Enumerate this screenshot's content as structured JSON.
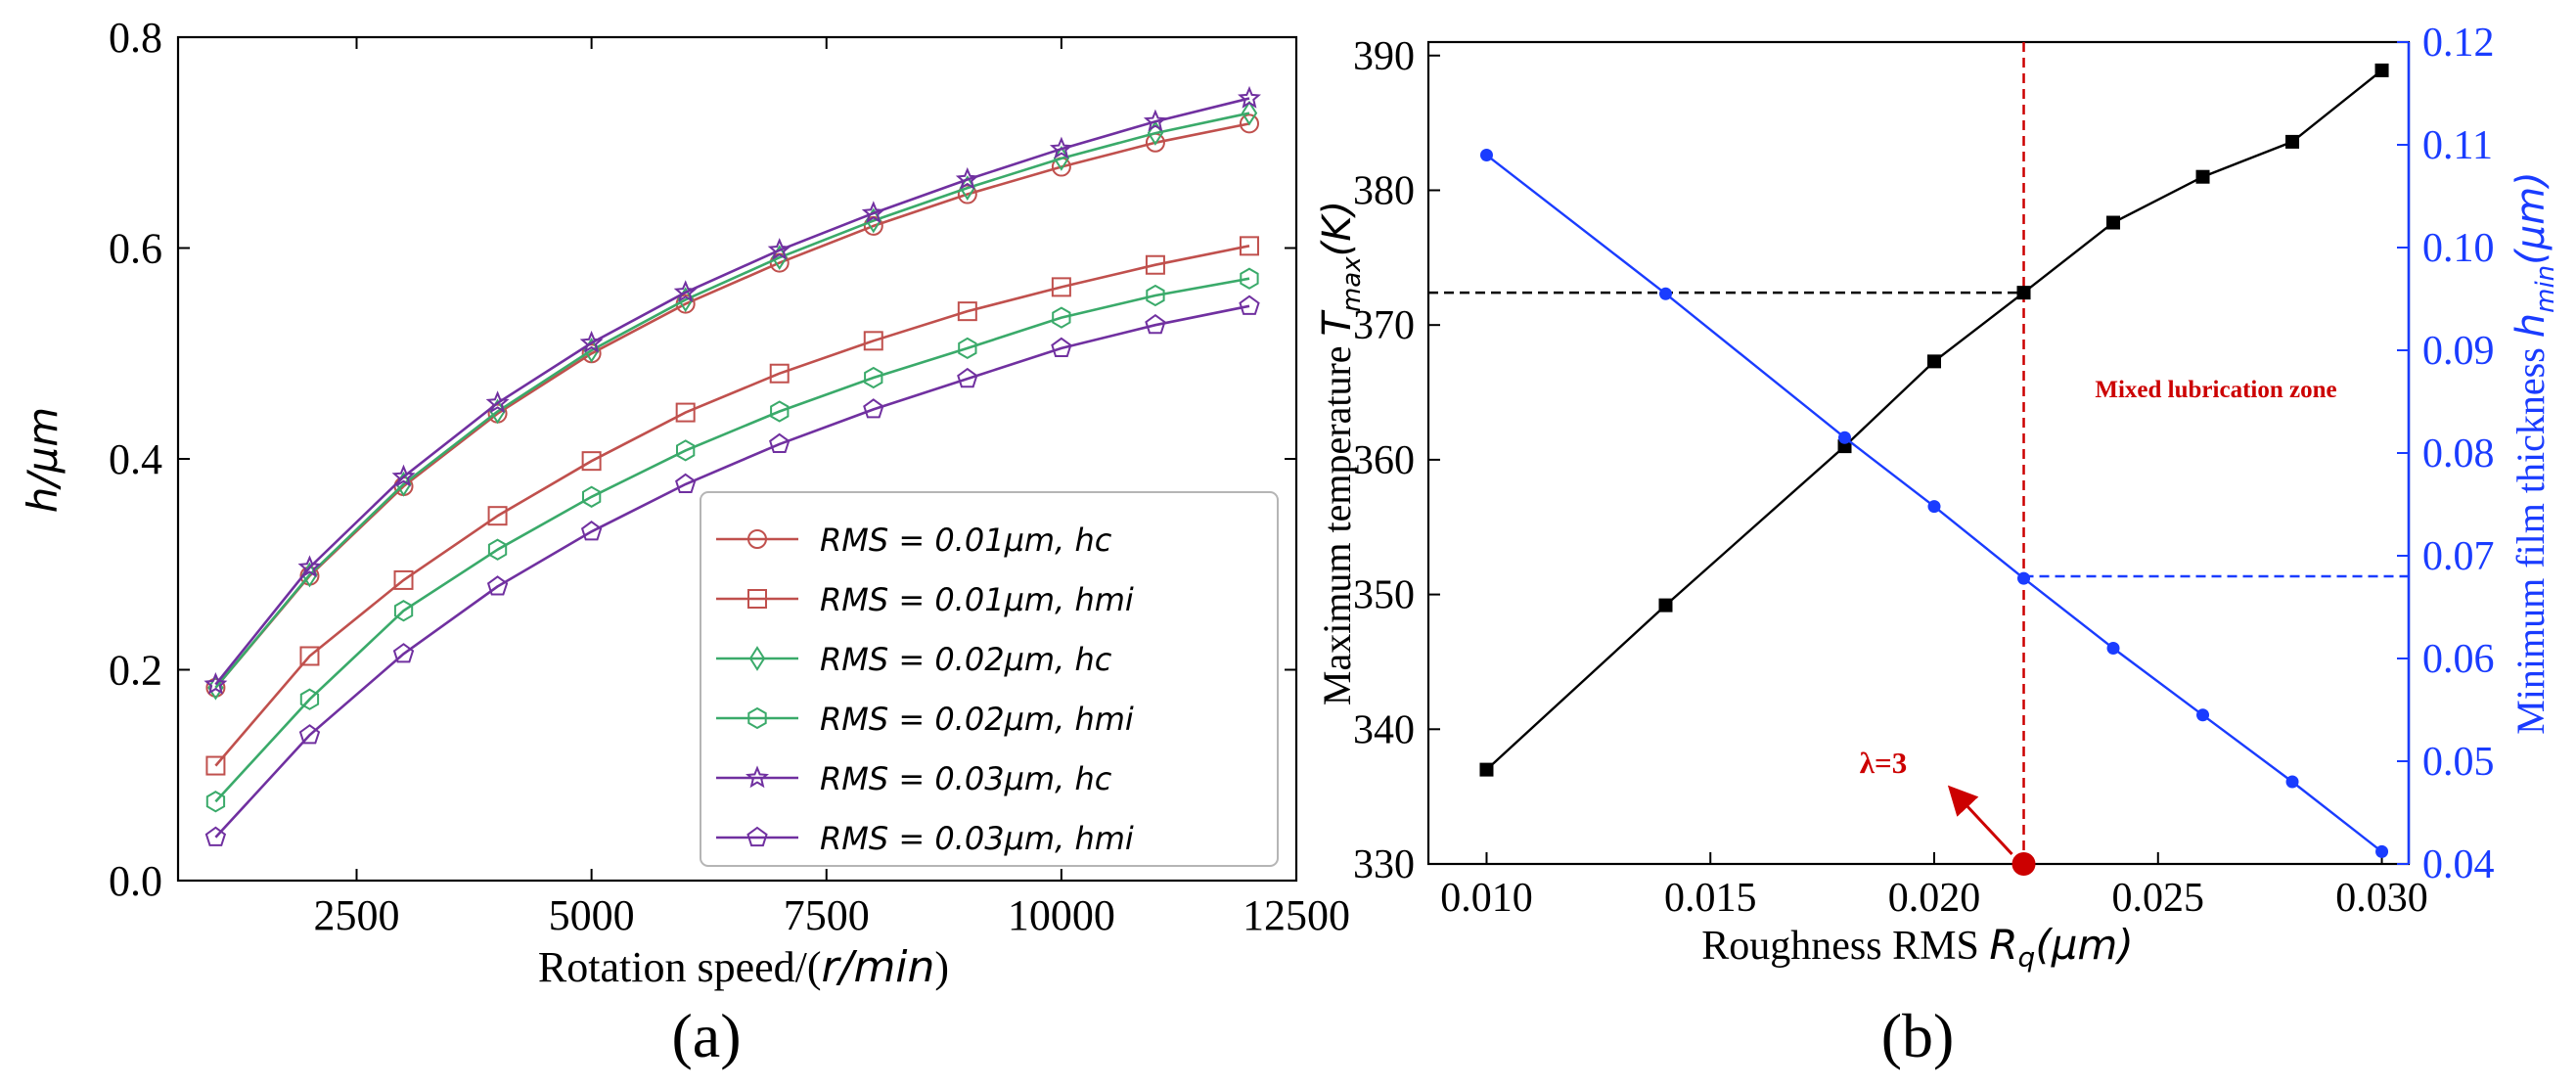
{
  "chart_data": [
    {
      "panel": "a",
      "type": "line",
      "caption": "(a)",
      "xlabel_prefix": "Rotation speed/(",
      "xlabel_math": "r/min",
      "xlabel_suffix": ")",
      "ylabel": "h/μm",
      "xlim": [
        600,
        12500
      ],
      "ylim": [
        0.0,
        0.8
      ],
      "xticks": [
        2500,
        5000,
        7500,
        10000,
        12500
      ],
      "yticks": [
        0.0,
        0.2,
        0.4,
        0.6,
        0.8
      ],
      "ytick_labels": [
        "0.0",
        "0.2",
        "0.4",
        "0.6",
        "0.8"
      ],
      "x": [
        1000,
        2000,
        3000,
        4000,
        5000,
        6000,
        7000,
        8000,
        9000,
        10000,
        11000,
        12000
      ],
      "legend_position": "lower-right",
      "series": [
        {
          "name": "RMS = 0.01μm, hc",
          "color": "#c0504d",
          "marker": "circle",
          "values": [
            0.183,
            0.289,
            0.374,
            0.443,
            0.5,
            0.547,
            0.586,
            0.621,
            0.651,
            0.677,
            0.7,
            0.718
          ]
        },
        {
          "name": "RMS = 0.01μm, hmi",
          "color": "#c0504d",
          "marker": "square",
          "values": [
            0.109,
            0.213,
            0.285,
            0.346,
            0.398,
            0.444,
            0.481,
            0.512,
            0.54,
            0.563,
            0.584,
            0.602
          ]
        },
        {
          "name": "RMS = 0.02μm, hc",
          "color": "#3aaa6a",
          "marker": "diamond",
          "values": [
            0.183,
            0.29,
            0.376,
            0.445,
            0.503,
            0.551,
            0.591,
            0.626,
            0.657,
            0.685,
            0.709,
            0.728
          ]
        },
        {
          "name": "RMS = 0.02μm, hmi",
          "color": "#3aaa6a",
          "marker": "hexagon",
          "values": [
            0.075,
            0.172,
            0.256,
            0.314,
            0.364,
            0.408,
            0.445,
            0.477,
            0.505,
            0.534,
            0.555,
            0.571
          ]
        },
        {
          "name": "RMS = 0.03μm, hc",
          "color": "#7030a0",
          "marker": "star",
          "values": [
            0.186,
            0.297,
            0.383,
            0.453,
            0.51,
            0.558,
            0.598,
            0.633,
            0.665,
            0.694,
            0.72,
            0.742
          ]
        },
        {
          "name": "RMS = 0.03μm, hmi",
          "color": "#7030a0",
          "marker": "pentagon",
          "values": [
            0.041,
            0.138,
            0.215,
            0.279,
            0.331,
            0.376,
            0.414,
            0.447,
            0.476,
            0.505,
            0.527,
            0.545
          ]
        }
      ]
    },
    {
      "panel": "b",
      "type": "line",
      "caption": "(b)",
      "xlabel_prefix": "Roughness RMS ",
      "xlabel_math": "R",
      "xlabel_sub": "q",
      "xlabel_unit": "(μm)",
      "ylabel_left_prefix": "Maximum temperature ",
      "ylabel_left_math": "T",
      "ylabel_left_sub": "max",
      "ylabel_left_unit": "(K)",
      "ylabel_right_prefix": "Minimum film thickness ",
      "ylabel_right_math": "h",
      "ylabel_right_sub": "min",
      "ylabel_right_unit": "(μm)",
      "xlim": [
        0.0087,
        0.0306
      ],
      "ylim_left": [
        330,
        391
      ],
      "ylim_right": [
        0.04,
        0.12
      ],
      "xticks": [
        0.01,
        0.015,
        0.02,
        0.025,
        0.03
      ],
      "xtick_labels": [
        "0.010",
        "0.015",
        "0.020",
        "0.025",
        "0.030"
      ],
      "yticks_left": [
        330,
        340,
        350,
        360,
        370,
        380,
        390
      ],
      "yticks_right": [
        0.04,
        0.05,
        0.06,
        0.07,
        0.08,
        0.09,
        0.1,
        0.11,
        0.12
      ],
      "ytick_right_labels": [
        "0.04",
        "0.05",
        "0.06",
        "0.07",
        "0.08",
        "0.09",
        "0.10",
        "0.11",
        "0.12"
      ],
      "x": [
        0.01,
        0.014,
        0.018,
        0.02,
        0.022,
        0.024,
        0.026,
        0.028,
        0.03
      ],
      "series": [
        {
          "name": "Maximum temperature",
          "axis": "left",
          "color": "#000000",
          "marker": "square",
          "values": [
            337.0,
            349.2,
            361.0,
            367.3,
            372.4,
            377.6,
            381.0,
            383.6,
            388.9
          ]
        },
        {
          "name": "Minimum film thickness",
          "axis": "right",
          "color": "#1a3cff",
          "marker": "circle",
          "values": [
            0.109,
            0.0955,
            0.0815,
            0.0748,
            0.0678,
            0.061,
            0.0545,
            0.048,
            0.0412
          ]
        }
      ],
      "annotations": {
        "vline_x": 0.022,
        "temp_ref": 372.4,
        "film_ref": 0.068,
        "zone_label": "Mixed lubrication zone",
        "lambda_label": "λ=3",
        "point": {
          "x": 0.022,
          "y": 330
        }
      },
      "colors": {
        "zone": "#cc0000",
        "left_axis": "#000000",
        "right_axis": "#1a3cff"
      }
    }
  ]
}
